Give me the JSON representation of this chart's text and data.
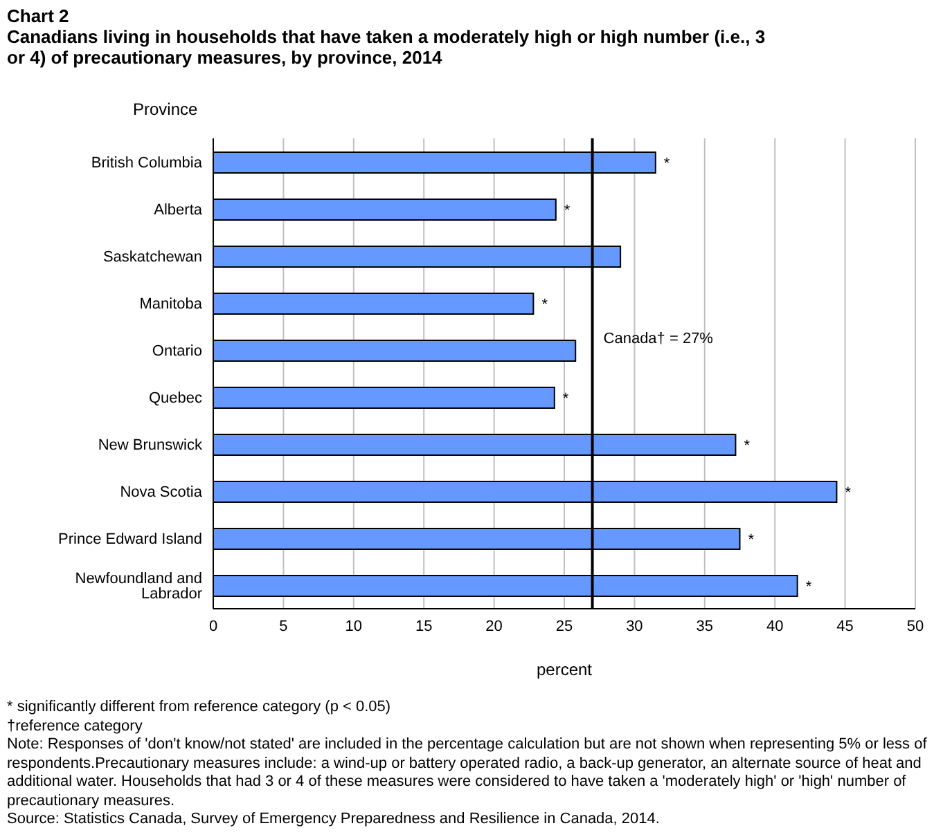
{
  "chart_data": {
    "type": "bar",
    "orientation": "horizontal",
    "title": "Chart 2",
    "subtitle": "Canadians living in households that have taken a moderately high or high number  (i.e., 3 or 4) of precautionary measures, by province, 2014",
    "ylabel": "Province",
    "xlabel": "percent",
    "categories": [
      "British Columbia",
      "Alberta",
      "Saskatchewan",
      "Manitoba",
      "Ontario",
      "Quebec",
      "New Brunswick",
      "Nova Scotia",
      "Prince Edward Island",
      "Newfoundland and Labrador"
    ],
    "values": [
      31.5,
      24.4,
      29.0,
      22.8,
      25.8,
      24.3,
      37.2,
      44.4,
      37.5,
      41.6
    ],
    "value_labels": [
      "*",
      "*",
      null,
      "*",
      null,
      "*",
      "*",
      "*",
      "*",
      "*"
    ],
    "color": "#6699ff",
    "xlim": [
      0,
      50
    ],
    "xticks": [
      0,
      5,
      10,
      15,
      20,
      25,
      30,
      35,
      40,
      45,
      50
    ],
    "grid": "x",
    "ref_lines": [
      {
        "axis": "x",
        "value": 27,
        "label": "Canada† = 27%",
        "color": "#000000"
      }
    ],
    "annotations": [
      "* significantly different from reference category (p < 0.05)",
      "†reference category",
      "Note: Responses of 'don't know/not stated' are  included in the percentage calculation but  are not shown when representing 5% or less of respondents.Precautionary measures  include: a  wind-up or battery  operated radio, a back-up  generator, an alternate source of heat and additional water. Households that had 3 or 4 of these measures  were considered to have taken  a 'moderately high' or 'high' number  of precautionary measures.",
      "Source: Statistics Canada, Survey of Emergency Preparedness and Resilience in Canada, 2014."
    ]
  }
}
